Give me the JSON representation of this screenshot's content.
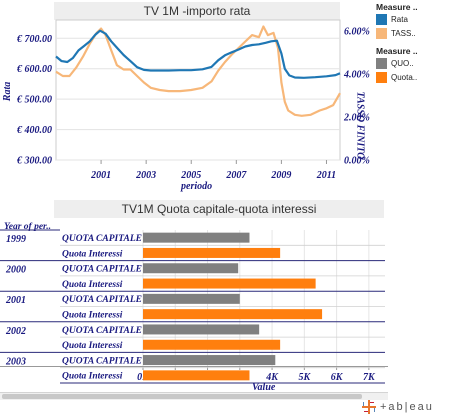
{
  "chart_data": [
    {
      "type": "line",
      "title": "TV 1M -importo rata",
      "xlabel": "periodo",
      "ylabel_left": "Rata",
      "ylabel_right": "TASSO FINITO",
      "x_ticks": [
        "2001",
        "2003",
        "2005",
        "2007",
        "2009",
        "2011"
      ],
      "x_range": [
        1999.0,
        2011.6
      ],
      "y_left_ticks": [
        "€ 300.00",
        "€ 400.00",
        "€ 500.00",
        "€ 600.00",
        "€ 700.00"
      ],
      "y_left_range": [
        300,
        760
      ],
      "y_right_ticks": [
        "0.00%",
        "2.00%",
        "4.00%",
        "6.00%"
      ],
      "y_right_range": [
        0,
        6.5
      ],
      "grid": true,
      "series": [
        {
          "name": "Rata",
          "axis": "left",
          "color": "#1f77b4",
          "points": [
            [
              1999.0,
              640
            ],
            [
              1999.25,
              625
            ],
            [
              1999.5,
              622
            ],
            [
              1999.75,
              635
            ],
            [
              2000.0,
              660
            ],
            [
              2000.25,
              675
            ],
            [
              2000.5,
              690
            ],
            [
              2000.75,
              712
            ],
            [
              2000.95,
              725
            ],
            [
              2001.2,
              715
            ],
            [
              2001.45,
              690
            ],
            [
              2001.75,
              665
            ],
            [
              2002.0,
              645
            ],
            [
              2002.3,
              625
            ],
            [
              2002.6,
              605
            ],
            [
              2002.9,
              596
            ],
            [
              2003.2,
              594
            ],
            [
              2004.0,
              594
            ],
            [
              2004.5,
              595
            ],
            [
              2005.0,
              595
            ],
            [
              2005.5,
              598
            ],
            [
              2005.9,
              606
            ],
            [
              2006.2,
              628
            ],
            [
              2006.5,
              644
            ],
            [
              2006.8,
              654
            ],
            [
              2007.1,
              663
            ],
            [
              2007.4,
              673
            ],
            [
              2007.7,
              678
            ],
            [
              2008.0,
              680
            ],
            [
              2008.3,
              685
            ],
            [
              2008.55,
              690
            ],
            [
              2008.8,
              692
            ],
            [
              2009.0,
              650
            ],
            [
              2009.15,
              600
            ],
            [
              2009.35,
              578
            ],
            [
              2009.6,
              571
            ],
            [
              2010.0,
              570
            ],
            [
              2010.5,
              572
            ],
            [
              2011.0,
              575
            ],
            [
              2011.4,
              579
            ],
            [
              2011.6,
              585
            ]
          ]
        },
        {
          "name": "TASSO FINITO",
          "axis": "right",
          "color": "#f7b779",
          "points": [
            [
              1999.0,
              4.1
            ],
            [
              1999.3,
              3.9
            ],
            [
              1999.6,
              3.9
            ],
            [
              1999.9,
              4.3
            ],
            [
              2000.2,
              4.8
            ],
            [
              2000.5,
              5.4
            ],
            [
              2000.8,
              5.9
            ],
            [
              2001.0,
              6.1
            ],
            [
              2001.2,
              5.8
            ],
            [
              2001.45,
              5.1
            ],
            [
              2001.7,
              4.4
            ],
            [
              2002.0,
              4.2
            ],
            [
              2002.3,
              4.2
            ],
            [
              2002.6,
              3.9
            ],
            [
              2002.9,
              3.6
            ],
            [
              2003.2,
              3.35
            ],
            [
              2003.6,
              3.25
            ],
            [
              2004.0,
              3.2
            ],
            [
              2004.5,
              3.2
            ],
            [
              2005.0,
              3.25
            ],
            [
              2005.5,
              3.35
            ],
            [
              2005.9,
              3.65
            ],
            [
              2006.2,
              4.15
            ],
            [
              2006.5,
              4.55
            ],
            [
              2006.8,
              4.9
            ],
            [
              2007.1,
              5.2
            ],
            [
              2007.4,
              5.5
            ],
            [
              2007.7,
              5.8
            ],
            [
              2008.0,
              5.7
            ],
            [
              2008.2,
              6.2
            ],
            [
              2008.4,
              5.8
            ],
            [
              2008.65,
              5.9
            ],
            [
              2008.85,
              5.2
            ],
            [
              2009.0,
              3.6
            ],
            [
              2009.15,
              2.7
            ],
            [
              2009.3,
              2.3
            ],
            [
              2009.6,
              2.1
            ],
            [
              2009.9,
              2.05
            ],
            [
              2010.3,
              2.1
            ],
            [
              2010.7,
              2.3
            ],
            [
              2011.0,
              2.4
            ],
            [
              2011.3,
              2.55
            ],
            [
              2011.6,
              3.1
            ]
          ]
        }
      ],
      "legend_placement": "right"
    },
    {
      "type": "bar",
      "orientation": "horizontal",
      "title": "TV1M Quota capitale-quota interessi",
      "xlabel": "Value",
      "row_header": "Year of per..",
      "x_ticks": [
        "0K",
        "1K",
        "2K",
        "3K",
        "4K",
        "5K",
        "6K",
        "7K"
      ],
      "x_range": [
        0,
        7500
      ],
      "rows": [
        {
          "year": "1999",
          "label": "QUOTA CAPITALE",
          "value": 3300,
          "color": "#808080"
        },
        {
          "year": "",
          "label": "Quota Interessi",
          "value": 4250,
          "color": "#ff7f0e"
        },
        {
          "year": "2000",
          "label": "QUOTA CAPITALE",
          "value": 2950,
          "color": "#808080"
        },
        {
          "year": "",
          "label": "Quota Interessi",
          "value": 5350,
          "color": "#ff7f0e"
        },
        {
          "year": "2001",
          "label": "QUOTA CAPITALE",
          "value": 3000,
          "color": "#808080"
        },
        {
          "year": "",
          "label": "Quota Interessi",
          "value": 5550,
          "color": "#ff7f0e"
        },
        {
          "year": "2002",
          "label": "QUOTA CAPITALE",
          "value": 3600,
          "color": "#808080"
        },
        {
          "year": "",
          "label": "Quota Interessi",
          "value": 4250,
          "color": "#ff7f0e"
        },
        {
          "year": "2003",
          "label": "QUOTA CAPITALE",
          "value": 4100,
          "color": "#808080"
        },
        {
          "year": "",
          "label": "Quota Interessi",
          "value": 3300,
          "color": "#ff7f0e"
        }
      ],
      "legend_placement": "right"
    }
  ],
  "legend_top": {
    "title": "Measure ..",
    "items": [
      {
        "label": "Rata",
        "color": "#1f77b4"
      },
      {
        "label": "TASS..",
        "color": "#f7b779"
      }
    ]
  },
  "legend_bottom": {
    "title": "Measure ..",
    "items": [
      {
        "label": "QUO..",
        "color": "#808080"
      },
      {
        "label": "Quota..",
        "color": "#ff7f0e"
      }
    ]
  },
  "brand": {
    "name": "+ab|eau"
  }
}
